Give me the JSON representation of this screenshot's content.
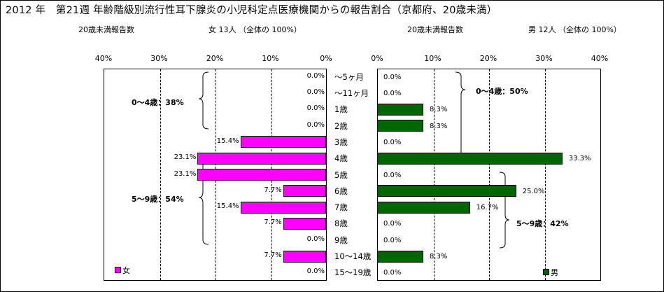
{
  "title": "2012 年　第21週 年齢階級別流行性耳下腺炎の小児科定点医療機関からの報告割合（京都府、20歳未満）",
  "female_header": {
    "label": "20歳未満報告数",
    "count": "女  13人 （全体の  100%）"
  },
  "male_header": {
    "label": "20歳未満報告数",
    "count": "男  12人 （全体の  100%）"
  },
  "annotations": {
    "female_0_4": "0～4歳：38%",
    "female_5_9": "5～9歳：54%",
    "male_0_4": "0～4歳：50%",
    "male_5_9": "5～9歳：42%"
  },
  "legend": {
    "female": "女",
    "male": "男"
  },
  "colors": {
    "female": "#ff00ff",
    "male": "#006600"
  },
  "chart_data": {
    "type": "bar",
    "orientation": "horizontal",
    "layout": "back-to-back",
    "categories": [
      "～5ヶ月",
      "～11ヶ月",
      "1歳",
      "2歳",
      "3歳",
      "4歳",
      "5歳",
      "6歳",
      "7歳",
      "8歳",
      "9歳",
      "10～14歳",
      "15～19歳"
    ],
    "series": [
      {
        "name": "女",
        "values": [
          0.0,
          0.0,
          0.0,
          0.0,
          15.4,
          23.1,
          23.1,
          7.7,
          15.4,
          7.7,
          0.0,
          7.7,
          0.0
        ],
        "labels": [
          "0.0%",
          "0.0%",
          "0.0%",
          "0.0%",
          "15.4%",
          "23.1%",
          "23.1%",
          "7.7%",
          "15.4%",
          "7.7%",
          "0.0%",
          "7.7%",
          "0.0%"
        ]
      },
      {
        "name": "男",
        "values": [
          0.0,
          0.0,
          8.3,
          8.3,
          0.0,
          33.3,
          0.0,
          25.0,
          16.7,
          0.0,
          0.0,
          8.3,
          0.0
        ],
        "labels": [
          "0.0%",
          "0.0%",
          "8.3%",
          "8.3%",
          "0.0%",
          "33.3%",
          "0.0%",
          "25.0%",
          "16.7%",
          "0.0%",
          "0.0%",
          "8.3%",
          "0.0%"
        ]
      }
    ],
    "female_ticks": [
      "40%",
      "30%",
      "20%",
      "10%",
      "0%"
    ],
    "male_ticks": [
      "0%",
      "10%",
      "20%",
      "30%",
      "40%"
    ],
    "xlim": [
      0,
      40
    ],
    "unit": "%",
    "grid": true
  }
}
